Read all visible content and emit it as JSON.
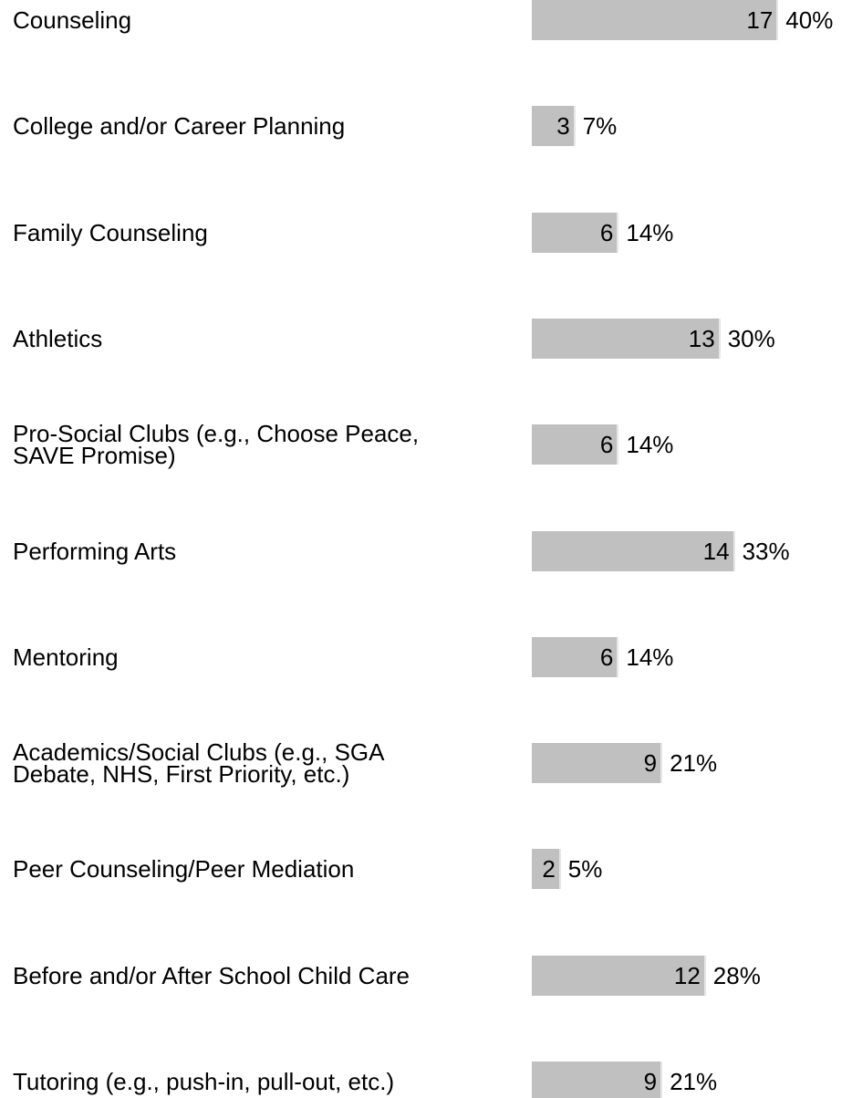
{
  "chart_data": {
    "type": "bar",
    "orientation": "horizontal",
    "color": "#c0c0c0",
    "categories": [
      "Counseling",
      "College and/or Career Planning",
      "Family Counseling",
      "Athletics",
      "Pro-Social Clubs (e.g., Choose Peace,\nSAVE Promise)",
      "Performing Arts",
      "Mentoring",
      "Academics/Social Clubs (e.g., SGA\nDebate, NHS, First Priority, etc.)",
      "Peer Counseling/Peer Mediation",
      "Before and/or After School Child Care",
      "Tutoring (e.g., push-in, pull-out, etc.)"
    ],
    "values": [
      17,
      3,
      6,
      13,
      6,
      14,
      6,
      9,
      2,
      12,
      9
    ],
    "percent_labels": [
      "40%",
      "7%",
      "14%",
      "30%",
      "14%",
      "33%",
      "14%",
      "21%",
      "5%",
      "28%",
      "21%"
    ]
  }
}
